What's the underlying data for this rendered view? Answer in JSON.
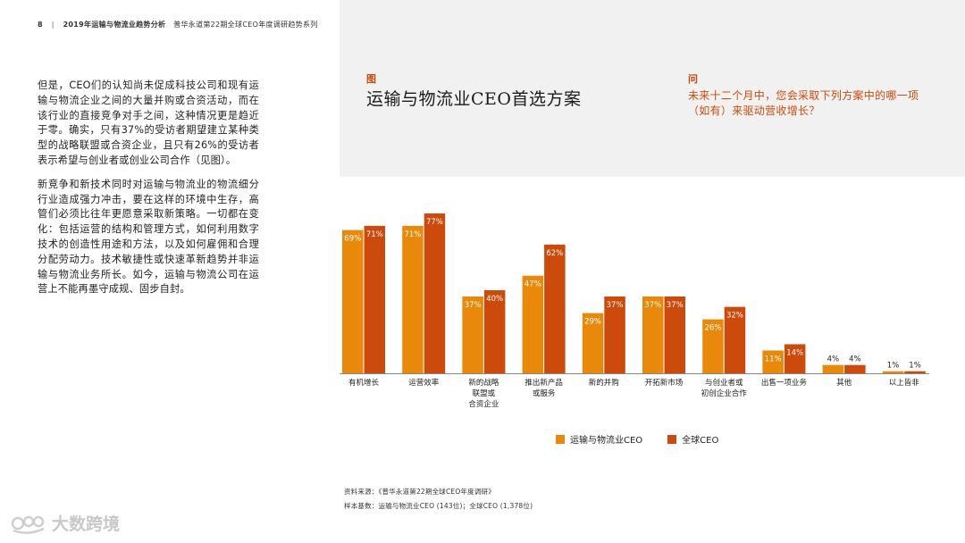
{
  "header": {
    "page_number": "8",
    "separator": "|",
    "section_title": "2019年运输与物流业趋势分析",
    "series_title": "普华永道第22期全球CEO年度调研趋势系列"
  },
  "body": {
    "paragraphs": [
      "但是，CEO们的认知尚未促成科技公司和现有运输与物流企业之间的大量并购或合资活动，而在该行业的直接竞争对手之间，这种情况更是趋近于零。确实，只有37%的受访者期望建立某种类型的战略联盟或合资企业，且只有26%的受访者表示希望与创业者或创业公司合作（见图）。",
      "新竞争和新技术同时对运输与物流业的物流细分行业造成强力冲击，要在这样的环境中生存，高管们必须比往年更愿意采取新策略。一切都在变化：包括运营的结构和管理方式，如何利用数字技术的创造性用途和方法，以及如何雇佣和合理分配劳动力。技术敏捷性或快速革新趋势并非运输与物流业务所长。如今，运输与物流公司在运营上不能再墨守成规、固步自封。"
    ]
  },
  "figure": {
    "label": "图",
    "title": "运输与物流业CEO首选方案"
  },
  "question": {
    "label": "问",
    "text": "未来十二个月中，您会采取下列方案中的哪一项（如有）来驱动营收增长？"
  },
  "chart_data": {
    "type": "bar",
    "categories": [
      [
        "有机增长"
      ],
      [
        "运营效率"
      ],
      [
        "新的战略",
        "联盟或",
        "合资企业"
      ],
      [
        "推出新产品",
        "或服务"
      ],
      [
        "新的并购"
      ],
      [
        "开拓新市场"
      ],
      [
        "与创业者或",
        "初创企业合作"
      ],
      [
        "出售一项业务"
      ],
      [
        "其他"
      ],
      [
        "以上皆非"
      ]
    ],
    "series": [
      {
        "name": "运输与物流业CEO",
        "color": "#e8890c",
        "values": [
          69,
          71,
          37,
          47,
          29,
          37,
          26,
          11,
          4,
          1
        ],
        "labels": [
          "69%",
          "71%",
          "37%",
          "47%",
          "29%",
          "37%",
          "26%",
          "11%",
          "4%",
          "1%"
        ]
      },
      {
        "name": "全球CEO",
        "color": "#cc4a0b",
        "values": [
          71,
          77,
          40,
          62,
          37,
          37,
          32,
          14,
          4,
          1
        ],
        "labels": [
          "71%",
          "77%",
          "40%",
          "62%",
          "37%",
          "37%",
          "32%",
          "14%",
          "4%",
          "1%"
        ]
      }
    ],
    "ylim": [
      0,
      80
    ],
    "legend_position": "bottom"
  },
  "source": {
    "line1": "资料来源：《普华永道第22期全球CEO年度调研》",
    "line2": "样本基数：运输与物流业CEO (143位)；全球CEO (1,378位)"
  },
  "watermark": {
    "text": "大数跨境"
  }
}
